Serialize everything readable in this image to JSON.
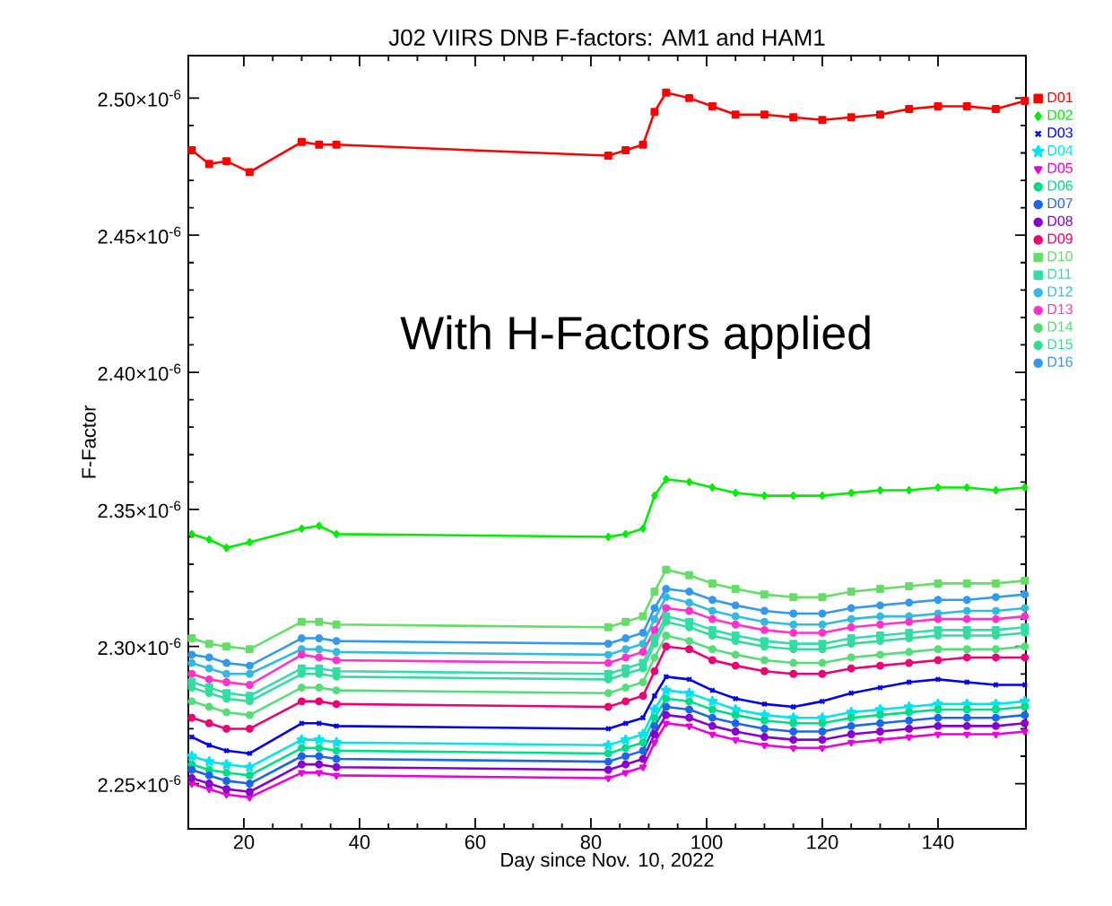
{
  "chart_data": {
    "type": "line",
    "title": "J02 VIIRS DNB F-factors: AM1 and HAM1",
    "xlabel": "Day since Nov. 10, 2022",
    "ylabel": "F-Factor",
    "annotations": [
      "With H-Factors applied"
    ],
    "legend": "right",
    "x": [
      11,
      14,
      17,
      21,
      30,
      33,
      36,
      83,
      86,
      89,
      91,
      93,
      97,
      101,
      105,
      110,
      115,
      120,
      125,
      130,
      135,
      140,
      145,
      150,
      155
    ],
    "xlim": [
      10.4,
      155.2
    ],
    "xticks": [
      20,
      40,
      60,
      80,
      100,
      120,
      140
    ],
    "ylim": [
      2.2335e-06,
      2.5155e-06
    ],
    "yticks": [
      {
        "value": 2.25e-06,
        "label": "2.25×10$^{-6}$"
      },
      {
        "value": 2.3e-06,
        "label": "2.30×10$^{-6}$"
      },
      {
        "value": 2.35e-06,
        "label": "2.35×10$^{-6}$"
      },
      {
        "value": 2.4e-06,
        "label": "2.40×10$^{-6}$"
      },
      {
        "value": 2.45e-06,
        "label": "2.45×10$^{-6}$"
      },
      {
        "value": 2.5e-06,
        "label": "2.50×10$^{-6}$"
      }
    ],
    "series": [
      {
        "name": "D01",
        "color": "#ff0000",
        "marker": "square",
        "values": [
          2.481e-06,
          2.476e-06,
          2.477e-06,
          2.473e-06,
          2.484e-06,
          2.483e-06,
          2.483e-06,
          2.479e-06,
          2.481e-06,
          2.483e-06,
          2.495e-06,
          2.502e-06,
          2.5e-06,
          2.497e-06,
          2.494e-06,
          2.494e-06,
          2.493e-06,
          2.492e-06,
          2.493e-06,
          2.494e-06,
          2.496e-06,
          2.497e-06,
          2.497e-06,
          2.496e-06,
          2.499e-06
        ]
      },
      {
        "name": "D02",
        "color": "#00ee00",
        "marker": "diamond",
        "values": [
          2.341e-06,
          2.339e-06,
          2.336e-06,
          2.338e-06,
          2.343e-06,
          2.344e-06,
          2.341e-06,
          2.34e-06,
          2.341e-06,
          2.343e-06,
          2.355e-06,
          2.361e-06,
          2.36e-06,
          2.358e-06,
          2.356e-06,
          2.355e-06,
          2.355e-06,
          2.355e-06,
          2.356e-06,
          2.357e-06,
          2.357e-06,
          2.358e-06,
          2.358e-06,
          2.357e-06,
          2.358e-06
        ]
      },
      {
        "name": "D03",
        "color": "#0000ee",
        "marker": "cross",
        "values": [
          2.267e-06,
          2.264e-06,
          2.262e-06,
          2.261e-06,
          2.272e-06,
          2.272e-06,
          2.271e-06,
          2.27e-06,
          2.272e-06,
          2.274e-06,
          2.282e-06,
          2.289e-06,
          2.288e-06,
          2.284e-06,
          2.281e-06,
          2.279e-06,
          2.278e-06,
          2.28e-06,
          2.283e-06,
          2.285e-06,
          2.287e-06,
          2.288e-06,
          2.287e-06,
          2.286e-06,
          2.286e-06
        ]
      },
      {
        "name": "D04",
        "color": "#00e5ee",
        "marker": "star",
        "values": [
          2.26e-06,
          2.258e-06,
          2.257e-06,
          2.256e-06,
          2.266e-06,
          2.266e-06,
          2.265e-06,
          2.264e-06,
          2.266e-06,
          2.268e-06,
          2.277e-06,
          2.284e-06,
          2.283e-06,
          2.28e-06,
          2.277e-06,
          2.275e-06,
          2.274e-06,
          2.274e-06,
          2.276e-06,
          2.277e-06,
          2.278e-06,
          2.279e-06,
          2.279e-06,
          2.279e-06,
          2.28e-06
        ]
      },
      {
        "name": "D05",
        "color": "#ee00dd",
        "marker": "triangle",
        "values": [
          2.25e-06,
          2.248e-06,
          2.246e-06,
          2.245e-06,
          2.254e-06,
          2.254e-06,
          2.253e-06,
          2.252e-06,
          2.254e-06,
          2.256e-06,
          2.265e-06,
          2.272e-06,
          2.271e-06,
          2.268e-06,
          2.266e-06,
          2.264e-06,
          2.263e-06,
          2.263e-06,
          2.265e-06,
          2.266e-06,
          2.267e-06,
          2.268e-06,
          2.268e-06,
          2.268e-06,
          2.269e-06
        ]
      },
      {
        "name": "D06",
        "color": "#00dd88",
        "marker": "circle",
        "values": [
          2.257e-06,
          2.255e-06,
          2.254e-06,
          2.253e-06,
          2.263e-06,
          2.263e-06,
          2.262e-06,
          2.261e-06,
          2.263e-06,
          2.265e-06,
          2.274e-06,
          2.281e-06,
          2.28e-06,
          2.277e-06,
          2.275e-06,
          2.273e-06,
          2.272e-06,
          2.272e-06,
          2.274e-06,
          2.275e-06,
          2.276e-06,
          2.277e-06,
          2.277e-06,
          2.277e-06,
          2.278e-06
        ]
      },
      {
        "name": "D07",
        "color": "#1a66ee",
        "marker": "circle",
        "values": [
          2.255e-06,
          2.253e-06,
          2.251e-06,
          2.25e-06,
          2.26e-06,
          2.26e-06,
          2.259e-06,
          2.258e-06,
          2.26e-06,
          2.262e-06,
          2.271e-06,
          2.278e-06,
          2.277e-06,
          2.274e-06,
          2.272e-06,
          2.27e-06,
          2.269e-06,
          2.269e-06,
          2.271e-06,
          2.272e-06,
          2.273e-06,
          2.274e-06,
          2.274e-06,
          2.274e-06,
          2.275e-06
        ]
      },
      {
        "name": "D08",
        "color": "#8800cc",
        "marker": "circle",
        "values": [
          2.252e-06,
          2.25e-06,
          2.248e-06,
          2.247e-06,
          2.257e-06,
          2.257e-06,
          2.256e-06,
          2.255e-06,
          2.257e-06,
          2.259e-06,
          2.268e-06,
          2.275e-06,
          2.274e-06,
          2.271e-06,
          2.269e-06,
          2.267e-06,
          2.266e-06,
          2.266e-06,
          2.268e-06,
          2.269e-06,
          2.27e-06,
          2.271e-06,
          2.271e-06,
          2.271e-06,
          2.272e-06
        ]
      },
      {
        "name": "D09",
        "color": "#ee0077",
        "marker": "circle",
        "values": [
          2.274e-06,
          2.272e-06,
          2.27e-06,
          2.27e-06,
          2.28e-06,
          2.28e-06,
          2.279e-06,
          2.278e-06,
          2.28e-06,
          2.282e-06,
          2.291e-06,
          2.3e-06,
          2.299e-06,
          2.295e-06,
          2.293e-06,
          2.291e-06,
          2.29e-06,
          2.29e-06,
          2.292e-06,
          2.293e-06,
          2.294e-06,
          2.295e-06,
          2.296e-06,
          2.296e-06,
          2.296e-06
        ]
      },
      {
        "name": "D10",
        "color": "#66dd66",
        "marker": "square",
        "values": [
          2.303e-06,
          2.301e-06,
          2.3e-06,
          2.299e-06,
          2.309e-06,
          2.309e-06,
          2.308e-06,
          2.307e-06,
          2.309e-06,
          2.311e-06,
          2.32e-06,
          2.328e-06,
          2.326e-06,
          2.323e-06,
          2.321e-06,
          2.319e-06,
          2.318e-06,
          2.318e-06,
          2.32e-06,
          2.321e-06,
          2.322e-06,
          2.323e-06,
          2.323e-06,
          2.323e-06,
          2.324e-06
        ]
      },
      {
        "name": "D11",
        "color": "#33ddaa",
        "marker": "square",
        "values": [
          2.287e-06,
          2.285e-06,
          2.283e-06,
          2.282e-06,
          2.292e-06,
          2.292e-06,
          2.291e-06,
          2.29e-06,
          2.292e-06,
          2.294e-06,
          2.303e-06,
          2.311e-06,
          2.309e-06,
          2.306e-06,
          2.304e-06,
          2.302e-06,
          2.301e-06,
          2.301e-06,
          2.303e-06,
          2.304e-06,
          2.305e-06,
          2.306e-06,
          2.306e-06,
          2.306e-06,
          2.307e-06
        ]
      },
      {
        "name": "D12",
        "color": "#33bbdd",
        "marker": "circle",
        "values": [
          2.294e-06,
          2.292e-06,
          2.29e-06,
          2.29e-06,
          2.299e-06,
          2.299e-06,
          2.298e-06,
          2.297e-06,
          2.299e-06,
          2.301e-06,
          2.31e-06,
          2.318e-06,
          2.316e-06,
          2.313e-06,
          2.311e-06,
          2.309e-06,
          2.308e-06,
          2.308e-06,
          2.31e-06,
          2.311e-06,
          2.311e-06,
          2.312e-06,
          2.313e-06,
          2.313e-06,
          2.314e-06
        ]
      },
      {
        "name": "D13",
        "color": "#ff33cc",
        "marker": "circle",
        "values": [
          2.29e-06,
          2.288e-06,
          2.287e-06,
          2.286e-06,
          2.297e-06,
          2.296e-06,
          2.295e-06,
          2.294e-06,
          2.296e-06,
          2.298e-06,
          2.306e-06,
          2.314e-06,
          2.313e-06,
          2.31e-06,
          2.308e-06,
          2.306e-06,
          2.305e-06,
          2.305e-06,
          2.307e-06,
          2.308e-06,
          2.309e-06,
          2.31e-06,
          2.31e-06,
          2.31e-06,
          2.311e-06
        ]
      },
      {
        "name": "D14",
        "color": "#55dd77",
        "marker": "circle",
        "values": [
          2.28e-06,
          2.278e-06,
          2.276e-06,
          2.275e-06,
          2.285e-06,
          2.285e-06,
          2.284e-06,
          2.283e-06,
          2.285e-06,
          2.287e-06,
          2.296e-06,
          2.304e-06,
          2.302e-06,
          2.299e-06,
          2.297e-06,
          2.295e-06,
          2.294e-06,
          2.294e-06,
          2.296e-06,
          2.297e-06,
          2.298e-06,
          2.299e-06,
          2.299e-06,
          2.299e-06,
          2.3e-06
        ]
      },
      {
        "name": "D15",
        "color": "#33dd99",
        "marker": "circle",
        "values": [
          2.285e-06,
          2.283e-06,
          2.281e-06,
          2.28e-06,
          2.29e-06,
          2.29e-06,
          2.289e-06,
          2.288e-06,
          2.29e-06,
          2.292e-06,
          2.301e-06,
          2.309e-06,
          2.307e-06,
          2.304e-06,
          2.302e-06,
          2.3e-06,
          2.299e-06,
          2.299e-06,
          2.301e-06,
          2.302e-06,
          2.303e-06,
          2.304e-06,
          2.304e-06,
          2.304e-06,
          2.305e-06
        ]
      },
      {
        "name": "D16",
        "color": "#3399ee",
        "marker": "circle",
        "values": [
          2.297e-06,
          2.296e-06,
          2.294e-06,
          2.293e-06,
          2.303e-06,
          2.303e-06,
          2.302e-06,
          2.301e-06,
          2.303e-06,
          2.305e-06,
          2.314e-06,
          2.321e-06,
          2.32e-06,
          2.317e-06,
          2.315e-06,
          2.313e-06,
          2.312e-06,
          2.312e-06,
          2.314e-06,
          2.315e-06,
          2.316e-06,
          2.317e-06,
          2.317e-06,
          2.318e-06,
          2.319e-06
        ]
      }
    ]
  }
}
